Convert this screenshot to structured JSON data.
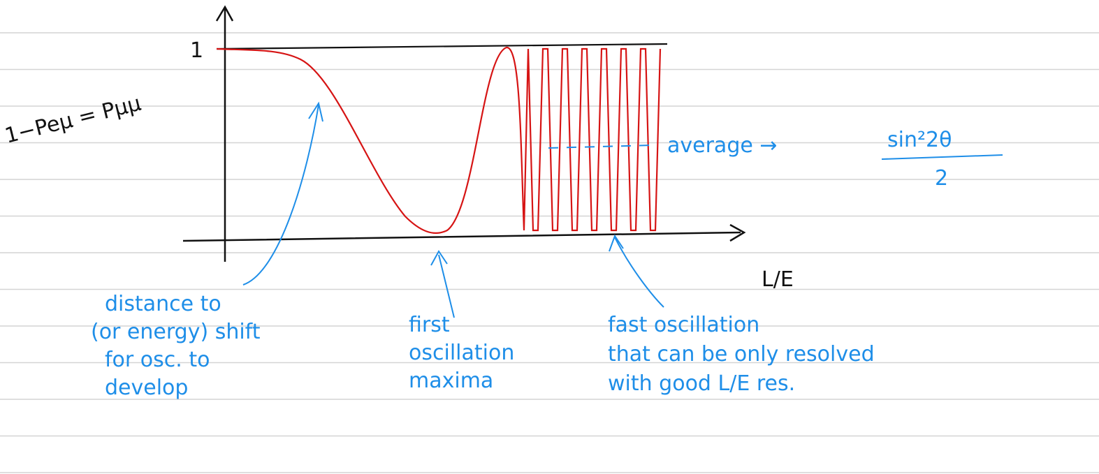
{
  "axes": {
    "y_top_label": "1",
    "y_label": "1−Peμ = Pμμ",
    "x_label": "L/E"
  },
  "average": {
    "label": "average →",
    "numerator": "sin²2θ",
    "denominator": "2"
  },
  "annotations": [
    {
      "lines": [
        "distance to",
        "(or energy) shift",
        "for osc. to",
        "develop"
      ]
    },
    {
      "lines": [
        "first",
        "oscillation",
        "maxima"
      ]
    },
    {
      "lines": [
        "fast oscillation",
        "that can be only resolved",
        "with good L/E res."
      ]
    }
  ]
}
